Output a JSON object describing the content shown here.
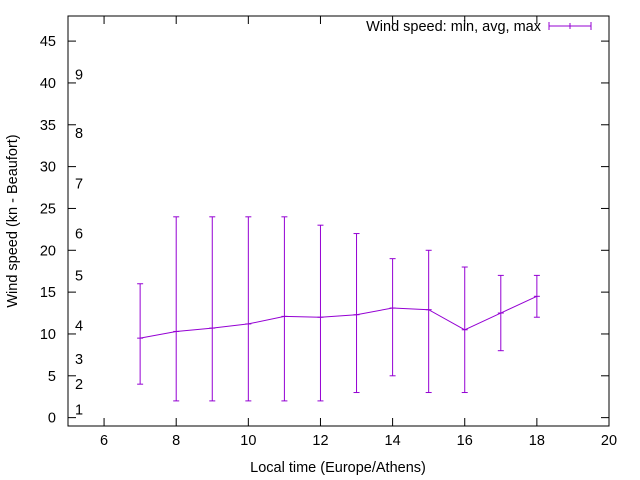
{
  "chart_data": {
    "type": "line",
    "title": "",
    "xlabel": "Local time (Europe/Athens)",
    "ylabel": "Wind speed (kn - Beaufort)",
    "xlim": [
      5,
      20
    ],
    "ylim": [
      -1,
      48
    ],
    "x_ticks": [
      6,
      8,
      10,
      12,
      14,
      16,
      18,
      20
    ],
    "y_ticks": [
      0,
      5,
      10,
      15,
      20,
      25,
      30,
      35,
      40,
      45
    ],
    "beaufort_marks": [
      {
        "label": "1",
        "y": 1
      },
      {
        "label": "2",
        "y": 4
      },
      {
        "label": "3",
        "y": 7
      },
      {
        "label": "4",
        "y": 11
      },
      {
        "label": "5",
        "y": 17
      },
      {
        "label": "6",
        "y": 22
      },
      {
        "label": "7",
        "y": 28
      },
      {
        "label": "8",
        "y": 34
      },
      {
        "label": "9",
        "y": 41
      }
    ],
    "series": [
      {
        "name": "Wind speed: min, avg, max",
        "color": "#9400d3",
        "x": [
          7,
          8,
          9,
          10,
          11,
          12,
          13,
          14,
          15,
          16,
          17,
          18
        ],
        "avg": [
          9.5,
          10.3,
          10.7,
          11.2,
          12.1,
          12.0,
          12.3,
          13.1,
          12.9,
          10.5,
          12.5,
          14.5
        ],
        "min": [
          4,
          2,
          2,
          2,
          2,
          2,
          3,
          5,
          3,
          3,
          8,
          12
        ],
        "max": [
          16,
          24,
          24,
          24,
          24,
          23,
          22,
          19,
          20,
          18,
          17,
          17
        ]
      }
    ],
    "legend_position": "top-right",
    "grid": false
  }
}
